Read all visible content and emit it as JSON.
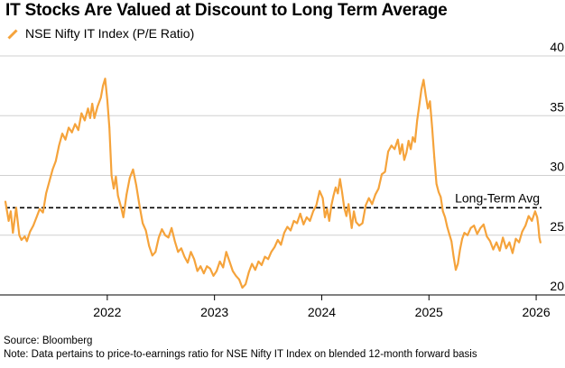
{
  "chart_data": {
    "type": "line",
    "title": "IT Stocks Are Valued at Discount to Long Term Average",
    "xlabel": "",
    "ylabel": "",
    "ylim": [
      20,
      40
    ],
    "xlim": [
      2021.05,
      2026.05
    ],
    "grid": true,
    "legend": "top-left",
    "series": [
      {
        "name": "NSE Nifty IT Index (P/E Ratio)",
        "color": "#F5A33B",
        "points": [
          [
            2021.05,
            27.8
          ],
          [
            2021.08,
            26.2
          ],
          [
            2021.1,
            27.0
          ],
          [
            2021.12,
            25.2
          ],
          [
            2021.15,
            27.3
          ],
          [
            2021.18,
            25.0
          ],
          [
            2021.2,
            24.6
          ],
          [
            2021.23,
            24.9
          ],
          [
            2021.25,
            24.5
          ],
          [
            2021.28,
            25.3
          ],
          [
            2021.31,
            25.8
          ],
          [
            2021.34,
            26.5
          ],
          [
            2021.37,
            27.2
          ],
          [
            2021.4,
            26.9
          ],
          [
            2021.43,
            28.5
          ],
          [
            2021.46,
            29.5
          ],
          [
            2021.49,
            30.5
          ],
          [
            2021.52,
            31.2
          ],
          [
            2021.55,
            32.5
          ],
          [
            2021.58,
            33.5
          ],
          [
            2021.61,
            33.0
          ],
          [
            2021.64,
            34.0
          ],
          [
            2021.67,
            33.6
          ],
          [
            2021.7,
            34.3
          ],
          [
            2021.73,
            33.8
          ],
          [
            2021.76,
            35.2
          ],
          [
            2021.79,
            34.6
          ],
          [
            2021.82,
            35.6
          ],
          [
            2021.84,
            34.8
          ],
          [
            2021.86,
            36.0
          ],
          [
            2021.88,
            34.8
          ],
          [
            2021.91,
            35.8
          ],
          [
            2021.94,
            36.5
          ],
          [
            2021.96,
            37.5
          ],
          [
            2021.98,
            38.1
          ],
          [
            2022.0,
            36.3
          ],
          [
            2022.02,
            34.0
          ],
          [
            2022.04,
            30.0
          ],
          [
            2022.06,
            28.9
          ],
          [
            2022.08,
            29.9
          ],
          [
            2022.1,
            28.3
          ],
          [
            2022.13,
            27.3
          ],
          [
            2022.15,
            26.5
          ],
          [
            2022.18,
            28.4
          ],
          [
            2022.21,
            29.8
          ],
          [
            2022.24,
            30.5
          ],
          [
            2022.27,
            29.2
          ],
          [
            2022.3,
            27.5
          ],
          [
            2022.33,
            26.0
          ],
          [
            2022.36,
            25.4
          ],
          [
            2022.39,
            24.1
          ],
          [
            2022.42,
            23.3
          ],
          [
            2022.45,
            23.6
          ],
          [
            2022.48,
            24.8
          ],
          [
            2022.51,
            25.5
          ],
          [
            2022.54,
            25.0
          ],
          [
            2022.57,
            24.8
          ],
          [
            2022.6,
            25.6
          ],
          [
            2022.63,
            24.5
          ],
          [
            2022.66,
            23.6
          ],
          [
            2022.69,
            23.9
          ],
          [
            2022.72,
            23.2
          ],
          [
            2022.75,
            22.7
          ],
          [
            2022.78,
            23.6
          ],
          [
            2022.81,
            23.0
          ],
          [
            2022.84,
            22.0
          ],
          [
            2022.87,
            22.4
          ],
          [
            2022.9,
            21.8
          ],
          [
            2022.93,
            22.4
          ],
          [
            2022.96,
            22.2
          ],
          [
            2022.99,
            21.6
          ],
          [
            2023.02,
            22.0
          ],
          [
            2023.05,
            22.8
          ],
          [
            2023.08,
            22.3
          ],
          [
            2023.11,
            23.6
          ],
          [
            2023.14,
            22.8
          ],
          [
            2023.17,
            22.0
          ],
          [
            2023.2,
            21.6
          ],
          [
            2023.23,
            21.3
          ],
          [
            2023.26,
            20.6
          ],
          [
            2023.29,
            20.9
          ],
          [
            2023.32,
            21.9
          ],
          [
            2023.35,
            22.6
          ],
          [
            2023.38,
            22.1
          ],
          [
            2023.41,
            22.8
          ],
          [
            2023.44,
            22.5
          ],
          [
            2023.47,
            23.2
          ],
          [
            2023.5,
            23.0
          ],
          [
            2023.53,
            23.6
          ],
          [
            2023.56,
            24.0
          ],
          [
            2023.59,
            24.6
          ],
          [
            2023.62,
            24.2
          ],
          [
            2023.65,
            25.2
          ],
          [
            2023.68,
            25.7
          ],
          [
            2023.71,
            25.4
          ],
          [
            2023.74,
            26.2
          ],
          [
            2023.77,
            26.0
          ],
          [
            2023.8,
            26.8
          ],
          [
            2023.83,
            25.9
          ],
          [
            2023.86,
            26.5
          ],
          [
            2023.89,
            26.2
          ],
          [
            2023.92,
            27.0
          ],
          [
            2023.95,
            27.5
          ],
          [
            2023.98,
            28.7
          ],
          [
            2024.01,
            28.1
          ],
          [
            2024.03,
            26.5
          ],
          [
            2024.05,
            27.2
          ],
          [
            2024.07,
            26.2
          ],
          [
            2024.09,
            27.5
          ],
          [
            2024.11,
            28.3
          ],
          [
            2024.13,
            29.0
          ],
          [
            2024.15,
            28.5
          ],
          [
            2024.17,
            29.7
          ],
          [
            2024.19,
            28.6
          ],
          [
            2024.21,
            27.3
          ],
          [
            2024.23,
            26.6
          ],
          [
            2024.25,
            27.6
          ],
          [
            2024.28,
            25.6
          ],
          [
            2024.3,
            27.0
          ],
          [
            2024.32,
            26.1
          ],
          [
            2024.35,
            25.8
          ],
          [
            2024.38,
            26.0
          ],
          [
            2024.41,
            27.5
          ],
          [
            2024.44,
            28.1
          ],
          [
            2024.47,
            27.6
          ],
          [
            2024.5,
            28.4
          ],
          [
            2024.53,
            28.9
          ],
          [
            2024.56,
            30.1
          ],
          [
            2024.59,
            30.3
          ],
          [
            2024.62,
            32.0
          ],
          [
            2024.65,
            32.5
          ],
          [
            2024.68,
            32.2
          ],
          [
            2024.71,
            33.0
          ],
          [
            2024.73,
            31.8
          ],
          [
            2024.75,
            32.6
          ],
          [
            2024.77,
            31.3
          ],
          [
            2024.79,
            31.9
          ],
          [
            2024.81,
            32.9
          ],
          [
            2024.83,
            32.2
          ],
          [
            2024.85,
            33.2
          ],
          [
            2024.87,
            32.8
          ],
          [
            2024.89,
            34.6
          ],
          [
            2024.91,
            35.9
          ],
          [
            2024.93,
            37.2
          ],
          [
            2024.95,
            38.0
          ],
          [
            2024.97,
            36.7
          ],
          [
            2024.99,
            35.6
          ],
          [
            2025.01,
            36.2
          ],
          [
            2025.03,
            34.0
          ],
          [
            2025.05,
            31.5
          ],
          [
            2025.07,
            29.3
          ],
          [
            2025.09,
            28.6
          ],
          [
            2025.11,
            28.2
          ],
          [
            2025.13,
            27.0
          ],
          [
            2025.15,
            26.5
          ],
          [
            2025.17,
            25.7
          ],
          [
            2025.19,
            25.1
          ],
          [
            2025.21,
            24.5
          ],
          [
            2025.23,
            23.2
          ],
          [
            2025.25,
            22.1
          ],
          [
            2025.27,
            22.6
          ],
          [
            2025.29,
            23.8
          ],
          [
            2025.31,
            24.7
          ],
          [
            2025.33,
            25.2
          ],
          [
            2025.36,
            25.0
          ],
          [
            2025.39,
            25.6
          ],
          [
            2025.42,
            25.8
          ],
          [
            2025.45,
            25.1
          ],
          [
            2025.48,
            25.6
          ],
          [
            2025.51,
            25.9
          ],
          [
            2025.54,
            24.9
          ],
          [
            2025.57,
            24.5
          ],
          [
            2025.6,
            23.8
          ],
          [
            2025.63,
            24.4
          ],
          [
            2025.66,
            23.7
          ],
          [
            2025.69,
            24.8
          ],
          [
            2025.72,
            23.9
          ],
          [
            2025.75,
            24.4
          ],
          [
            2025.78,
            23.5
          ],
          [
            2025.81,
            24.7
          ],
          [
            2025.84,
            24.4
          ],
          [
            2025.87,
            25.3
          ],
          [
            2025.9,
            25.8
          ],
          [
            2025.93,
            26.6
          ],
          [
            2025.96,
            26.2
          ],
          [
            2025.99,
            27.0
          ],
          [
            2026.01,
            26.5
          ],
          [
            2026.02,
            25.8
          ],
          [
            2026.03,
            24.8
          ],
          [
            2026.04,
            24.4
          ]
        ]
      }
    ],
    "reference_line": {
      "label": "Long-Term Avg",
      "value": 27.3
    },
    "y_ticks": [
      "20",
      "25",
      "30",
      "35",
      "40"
    ],
    "x_ticks": [
      {
        "label": "2022",
        "value": 2022
      },
      {
        "label": "2023",
        "value": 2023
      },
      {
        "label": "2024",
        "value": 2024
      },
      {
        "label": "2025",
        "value": 2025
      },
      {
        "label": "2026",
        "value": 2026
      }
    ]
  },
  "footer": {
    "source": "Source: Bloomberg",
    "note": "Note: Data pertains to price-to-earnings ratio for NSE Nifty IT Index on blended 12-month forward basis"
  }
}
